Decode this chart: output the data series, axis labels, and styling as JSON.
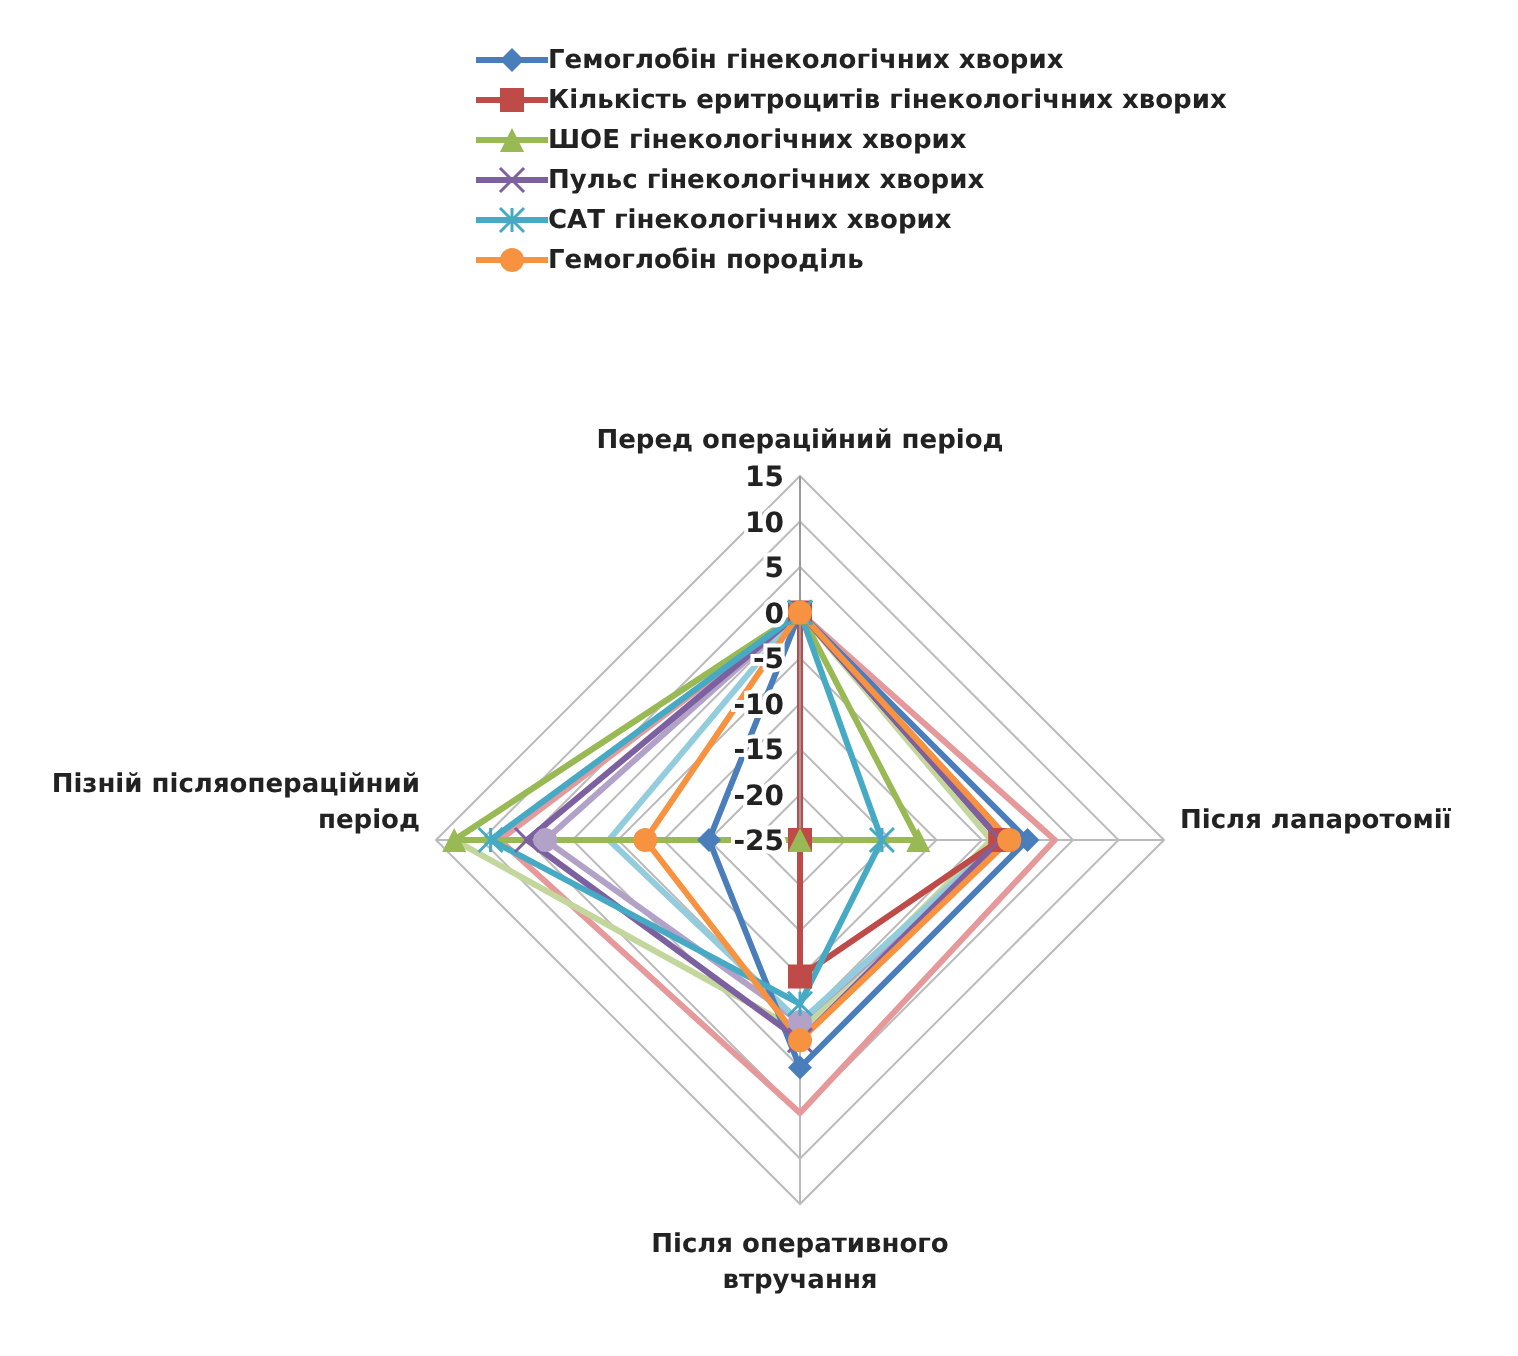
{
  "chart_data": {
    "type": "radar",
    "categories": [
      "Перед операційний період",
      "Після лапаротомії",
      "Після оперативного втручання",
      "Пізній післяопераційний період"
    ],
    "ylim": [
      -25,
      15
    ],
    "yticks": [
      -25,
      -20,
      -15,
      -10,
      -5,
      0,
      5,
      10,
      15
    ],
    "grid": true,
    "legend": "top",
    "series": [
      {
        "name": "Гемоглобін гінекологічних хворих",
        "color": "#4a7ebb",
        "marker": "diamond",
        "values": [
          0,
          0,
          0,
          -15
        ]
      },
      {
        "name": "Кількість еритроцитів гінекологічних хворих",
        "color": "#be4b48",
        "marker": "square",
        "values": [
          0,
          -3,
          -10,
          -25
        ]
      },
      {
        "name": "ШОЕ гінекологічних хворих",
        "color": "#98b954",
        "marker": "triangle",
        "values": [
          0,
          -12,
          -25,
          13
        ]
      },
      {
        "name": "Пульс гінекологічних хворих",
        "color": "#7d60a0",
        "marker": "cross",
        "values": [
          0,
          -3,
          -3,
          5
        ]
      },
      {
        "name": "САТ гінекологічних хворих",
        "color": "#46aac5",
        "marker": "star",
        "values": [
          0,
          -16,
          -7,
          9
        ]
      },
      {
        "name": "Гемоглобін породіль",
        "color": "#f69240",
        "marker": "circle",
        "values": [
          0,
          -2,
          -3,
          -8
        ]
      },
      {
        "color": "#e6999a",
        "marker": "none",
        "values": [
          0,
          3,
          5,
          8
        ]
      },
      {
        "color": "#c3d69b",
        "marker": "none",
        "values": [
          0,
          -4,
          -4,
          13
        ]
      },
      {
        "color": "#b3a2c7",
        "marker": "circle",
        "values": [
          0,
          -2,
          -5,
          3
        ]
      },
      {
        "color": "#93cddd",
        "marker": "none",
        "values": [
          0,
          -3,
          -5,
          -4
        ]
      }
    ]
  }
}
